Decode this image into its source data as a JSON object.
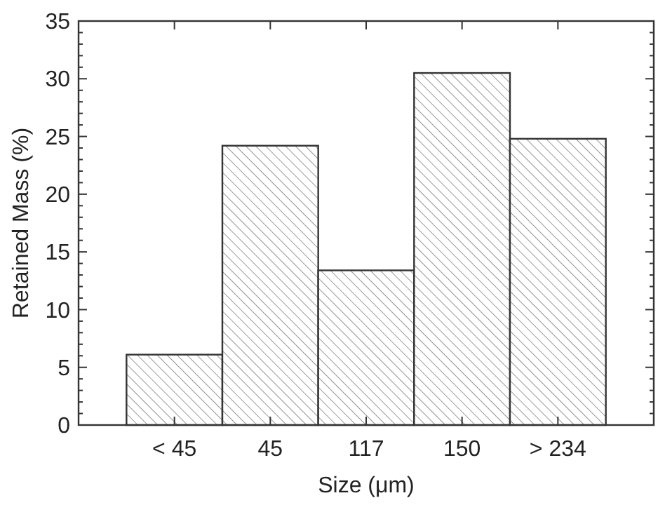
{
  "chart_data": {
    "type": "bar",
    "xlabel": "Size (μm)",
    "ylabel": "Retained Mass (%)",
    "categories": [
      "< 45",
      "45",
      "117",
      "150",
      "> 234"
    ],
    "values": [
      6.1,
      24.2,
      13.4,
      30.5,
      24.8
    ],
    "color": "#333333",
    "ylim": [
      0,
      35
    ],
    "yticks": [
      0,
      5,
      10,
      15,
      20,
      25,
      30,
      35
    ],
    "grid": false
  }
}
